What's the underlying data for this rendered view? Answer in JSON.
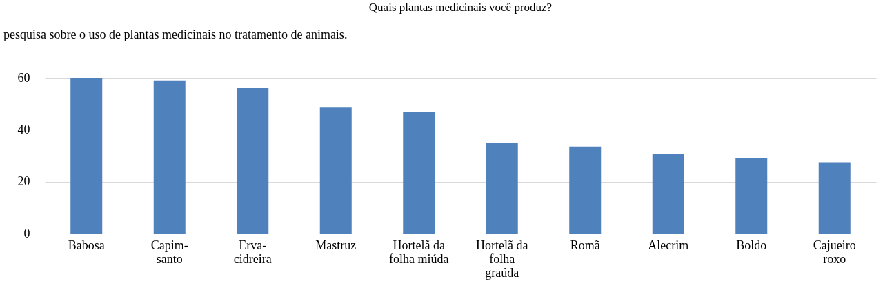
{
  "chart_data": {
    "type": "bar",
    "title": "Quais plantas medicinais  você produz?",
    "annotations": [
      "pesquisa sobre o uso de plantas medicinais no tratamento de animais."
    ],
    "categories": [
      "Babosa",
      "Capim-\nsanto",
      "Erva-\ncidreira",
      "Mastruz",
      "Hortelã da\nfolha miúda",
      "Hortelã da\nfolha\ngraúda",
      "Romã",
      "Alecrim",
      "Boldo",
      "Cajueiro\nroxo"
    ],
    "values": [
      60,
      59,
      56,
      48.5,
      47,
      35,
      33.5,
      30.5,
      29,
      27.5
    ],
    "color": "#4f81bd",
    "ylim": [
      0,
      60
    ],
    "yticks": [
      0,
      20,
      40,
      60
    ],
    "grid": "y"
  }
}
